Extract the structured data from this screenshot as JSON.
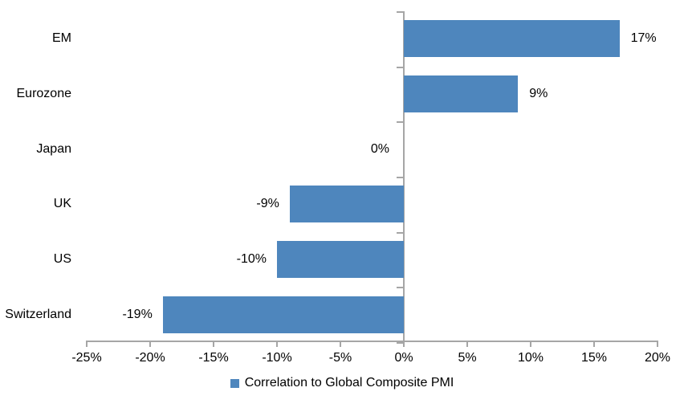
{
  "chart_data": {
    "type": "bar",
    "orientation": "horizontal",
    "title": "",
    "xlabel": "",
    "ylabel": "",
    "grid": false,
    "categories": [
      "EM",
      "Eurozone",
      "Japan",
      "UK",
      "US",
      "Switzerland"
    ],
    "series": [
      {
        "name": "Correlation to Global Composite PMI",
        "values": [
          17,
          9,
          0,
          -9,
          -10,
          -19
        ],
        "value_labels": [
          "17%",
          "9%",
          "0%",
          "-9%",
          "-10%",
          "-19%"
        ]
      }
    ],
    "x_axis": {
      "range": [
        -25,
        20
      ],
      "tick_step": 5,
      "tick_values": [
        -25,
        -20,
        -15,
        -10,
        -5,
        0,
        5,
        10,
        15,
        20
      ],
      "tick_labels": [
        "-25%",
        "-20%",
        "-15%",
        "-10%",
        "-5%",
        "0%",
        "5%",
        "10%",
        "15%",
        "20%"
      ]
    },
    "legend": {
      "label": "Correlation to Global Composite PMI",
      "position": "bottom"
    },
    "colors": {
      "bar": "#4E86BD",
      "axis": "#A6A6A6",
      "text": "#000000",
      "background": "#FFFFFF"
    }
  }
}
